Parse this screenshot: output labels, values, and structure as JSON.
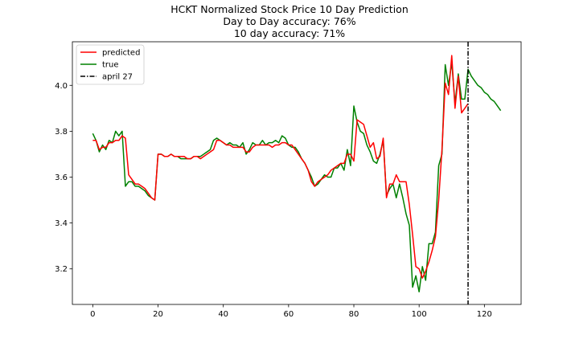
{
  "chart_data": {
    "type": "line",
    "title_lines": [
      "HCKT Normalized Stock Price 10 Day Prediction",
      "Day to Day accuracy: 76%",
      "10 day accuracy: 71%"
    ],
    "xlabel": "",
    "ylabel": "",
    "xlim": [
      -6.25,
      131.25
    ],
    "ylim": [
      3.045,
      4.19
    ],
    "xticks": [
      0,
      20,
      40,
      60,
      80,
      100,
      120
    ],
    "yticks": [
      3.2,
      3.4,
      3.6,
      3.8,
      4.0
    ],
    "grid": false,
    "legend": {
      "placement": "top-left"
    },
    "colors": {
      "predicted": "#ff0000",
      "true": "#008000",
      "april_27": "#000000"
    },
    "series": [
      {
        "name": "predicted",
        "color": "#ff0000",
        "x": [
          0,
          1,
          2,
          3,
          4,
          5,
          6,
          7,
          8,
          9,
          10,
          11,
          12,
          13,
          14,
          15,
          16,
          17,
          18,
          19,
          20,
          21,
          22,
          23,
          24,
          25,
          26,
          27,
          28,
          29,
          30,
          31,
          32,
          33,
          34,
          35,
          36,
          37,
          38,
          39,
          40,
          41,
          42,
          43,
          44,
          45,
          46,
          47,
          48,
          49,
          50,
          51,
          52,
          53,
          54,
          55,
          56,
          57,
          58,
          59,
          60,
          61,
          62,
          63,
          64,
          65,
          66,
          67,
          68,
          69,
          70,
          71,
          72,
          73,
          74,
          75,
          76,
          77,
          78,
          79,
          80,
          81,
          82,
          83,
          84,
          85,
          86,
          87,
          88,
          89,
          90,
          91,
          92,
          93,
          94,
          95,
          96,
          97,
          98,
          99,
          100,
          101,
          102,
          103,
          104,
          105,
          106,
          107,
          108,
          109,
          110,
          111,
          112,
          113,
          114,
          115
        ],
        "y": [
          3.76,
          3.76,
          3.72,
          3.73,
          3.73,
          3.75,
          3.75,
          3.76,
          3.76,
          3.78,
          3.77,
          3.61,
          3.59,
          3.57,
          3.57,
          3.56,
          3.55,
          3.53,
          3.51,
          3.5,
          3.7,
          3.7,
          3.69,
          3.69,
          3.7,
          3.69,
          3.69,
          3.69,
          3.69,
          3.68,
          3.68,
          3.69,
          3.69,
          3.68,
          3.69,
          3.7,
          3.71,
          3.72,
          3.76,
          3.76,
          3.75,
          3.74,
          3.74,
          3.73,
          3.73,
          3.73,
          3.73,
          3.71,
          3.71,
          3.73,
          3.74,
          3.74,
          3.74,
          3.74,
          3.74,
          3.73,
          3.74,
          3.74,
          3.75,
          3.75,
          3.74,
          3.74,
          3.72,
          3.7,
          3.68,
          3.66,
          3.63,
          3.58,
          3.56,
          3.58,
          3.59,
          3.6,
          3.61,
          3.63,
          3.64,
          3.65,
          3.66,
          3.66,
          3.7,
          3.7,
          3.67,
          3.85,
          3.84,
          3.83,
          3.78,
          3.73,
          3.75,
          3.68,
          3.69,
          3.77,
          3.51,
          3.57,
          3.57,
          3.61,
          3.58,
          3.58,
          3.58,
          3.48,
          3.35,
          3.21,
          3.2,
          3.16,
          3.19,
          3.23,
          3.28,
          3.34,
          3.5,
          3.72,
          4.01,
          3.96,
          4.13,
          3.9,
          4.04,
          3.88,
          3.9,
          3.92
        ]
      },
      {
        "name": "true",
        "color": "#008000",
        "x": [
          0,
          1,
          2,
          3,
          4,
          5,
          6,
          7,
          8,
          9,
          10,
          11,
          12,
          13,
          14,
          15,
          16,
          17,
          18,
          19,
          20,
          21,
          22,
          23,
          24,
          25,
          26,
          27,
          28,
          29,
          30,
          31,
          32,
          33,
          34,
          35,
          36,
          37,
          38,
          39,
          40,
          41,
          42,
          43,
          44,
          45,
          46,
          47,
          48,
          49,
          50,
          51,
          52,
          53,
          54,
          55,
          56,
          57,
          58,
          59,
          60,
          61,
          62,
          63,
          64,
          65,
          66,
          67,
          68,
          69,
          70,
          71,
          72,
          73,
          74,
          75,
          76,
          77,
          78,
          79,
          80,
          81,
          82,
          83,
          84,
          85,
          86,
          87,
          88,
          89,
          90,
          91,
          92,
          93,
          94,
          95,
          96,
          97,
          98,
          99,
          100,
          101,
          102,
          103,
          104,
          105,
          106,
          107,
          108,
          109,
          110,
          111,
          112,
          113,
          114,
          115,
          116,
          117,
          118,
          119,
          120,
          121,
          122,
          123,
          124,
          125
        ],
        "y": [
          3.79,
          3.76,
          3.71,
          3.74,
          3.72,
          3.76,
          3.75,
          3.8,
          3.78,
          3.8,
          3.56,
          3.58,
          3.58,
          3.56,
          3.56,
          3.55,
          3.54,
          3.52,
          3.51,
          3.5,
          3.7,
          3.7,
          3.69,
          3.69,
          3.7,
          3.69,
          3.69,
          3.68,
          3.68,
          3.68,
          3.68,
          3.69,
          3.69,
          3.69,
          3.7,
          3.71,
          3.72,
          3.76,
          3.77,
          3.76,
          3.75,
          3.74,
          3.75,
          3.74,
          3.74,
          3.73,
          3.75,
          3.7,
          3.72,
          3.75,
          3.74,
          3.74,
          3.76,
          3.74,
          3.75,
          3.75,
          3.76,
          3.75,
          3.78,
          3.77,
          3.74,
          3.73,
          3.73,
          3.71,
          3.68,
          3.66,
          3.63,
          3.6,
          3.56,
          3.57,
          3.59,
          3.61,
          3.6,
          3.6,
          3.64,
          3.64,
          3.66,
          3.63,
          3.72,
          3.65,
          3.91,
          3.84,
          3.8,
          3.79,
          3.74,
          3.71,
          3.67,
          3.66,
          3.7,
          3.76,
          3.52,
          3.55,
          3.57,
          3.51,
          3.57,
          3.51,
          3.44,
          3.39,
          3.12,
          3.17,
          3.1,
          3.21,
          3.15,
          3.31,
          3.31,
          3.36,
          3.65,
          3.7,
          4.09,
          4.0,
          4.1,
          3.92,
          4.05,
          3.94,
          3.94,
          4.07,
          4.04,
          4.02,
          4.0,
          3.99,
          3.97,
          3.96,
          3.94,
          3.93,
          3.91,
          3.89
        ]
      }
    ],
    "vline": {
      "name": "april 27",
      "x": 115,
      "style": "dashdot",
      "color": "#000000"
    }
  }
}
